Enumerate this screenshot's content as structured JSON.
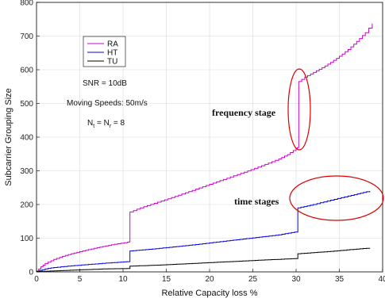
{
  "chart_data": {
    "type": "line",
    "title": "",
    "xlabel": "Relative Capacity loss %",
    "ylabel": "Subcarrier Grouping Size",
    "xlim": [
      0,
      40
    ],
    "ylim": [
      0,
      800
    ],
    "xticks": [
      0,
      5,
      10,
      15,
      20,
      25,
      30,
      35,
      40
    ],
    "yticks": [
      0,
      100,
      200,
      300,
      400,
      500,
      600,
      700,
      800
    ],
    "grid": true,
    "legend_position": "upper-left",
    "series": [
      {
        "name": "RA",
        "color": "#cc00cc",
        "points": [
          [
            0,
            2
          ],
          [
            0.5,
            15
          ],
          [
            1,
            25
          ],
          [
            2,
            37
          ],
          [
            3,
            46
          ],
          [
            4,
            54
          ],
          [
            5,
            60
          ],
          [
            6,
            66
          ],
          [
            7,
            72
          ],
          [
            8,
            77
          ],
          [
            9,
            82
          ],
          [
            10.5,
            88
          ],
          [
            10.8,
            90
          ],
          [
            10.8,
            178
          ],
          [
            12,
            190
          ],
          [
            14,
            207
          ],
          [
            16,
            224
          ],
          [
            18,
            242
          ],
          [
            20,
            260
          ],
          [
            22,
            278
          ],
          [
            24,
            296
          ],
          [
            26,
            315
          ],
          [
            28,
            335
          ],
          [
            29,
            348
          ],
          [
            30,
            366
          ],
          [
            30.3,
            372
          ],
          [
            30.3,
            565
          ],
          [
            31,
            578
          ],
          [
            32,
            592
          ],
          [
            33,
            606
          ],
          [
            34,
            622
          ],
          [
            35,
            640
          ],
          [
            36,
            660
          ],
          [
            37,
            684
          ],
          [
            38,
            710
          ],
          [
            38.8,
            737
          ]
        ]
      },
      {
        "name": "HT",
        "color": "#0000dd",
        "points": [
          [
            0,
            2
          ],
          [
            1,
            9
          ],
          [
            2,
            13
          ],
          [
            4,
            18
          ],
          [
            6,
            22
          ],
          [
            8,
            26
          ],
          [
            10.8,
            31
          ],
          [
            10.8,
            62
          ],
          [
            13,
            67
          ],
          [
            15,
            72
          ],
          [
            18,
            80
          ],
          [
            20,
            86
          ],
          [
            22,
            92
          ],
          [
            25,
            101
          ],
          [
            28,
            110
          ],
          [
            30.2,
            120
          ],
          [
            30.2,
            190
          ],
          [
            32,
            200
          ],
          [
            34,
            213
          ],
          [
            36,
            225
          ],
          [
            38.5,
            240
          ]
        ]
      },
      {
        "name": "TU",
        "color": "#000000",
        "points": [
          [
            0,
            1
          ],
          [
            2,
            3
          ],
          [
            5,
            6
          ],
          [
            8,
            9
          ],
          [
            10.8,
            10
          ],
          [
            10.8,
            17
          ],
          [
            14,
            20
          ],
          [
            18,
            25
          ],
          [
            22,
            30
          ],
          [
            26,
            35
          ],
          [
            30.2,
            40
          ],
          [
            30.2,
            54
          ],
          [
            34,
            61
          ],
          [
            38.5,
            71
          ]
        ]
      }
    ],
    "annotations": {
      "snr": "SNR = 10dB",
      "speed": "Moving Speeds: 50m/s",
      "antennas_main": "N",
      "antennas_t": "t",
      "antennas_eq": " = N",
      "antennas_r": "r",
      "antennas_val": " = 8",
      "frequency_stage": "frequency stage",
      "time_stages": "time stages"
    },
    "highlight_color": "#dd0000"
  }
}
